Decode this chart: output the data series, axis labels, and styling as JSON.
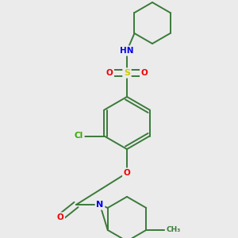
{
  "background_color": "#ebebeb",
  "bond_color": "#3a7a3a",
  "atom_colors": {
    "N": "#0000ee",
    "O": "#ee0000",
    "S": "#cccc00",
    "Cl": "#33aa00",
    "H": "#888888",
    "C": "#3a7a3a"
  }
}
